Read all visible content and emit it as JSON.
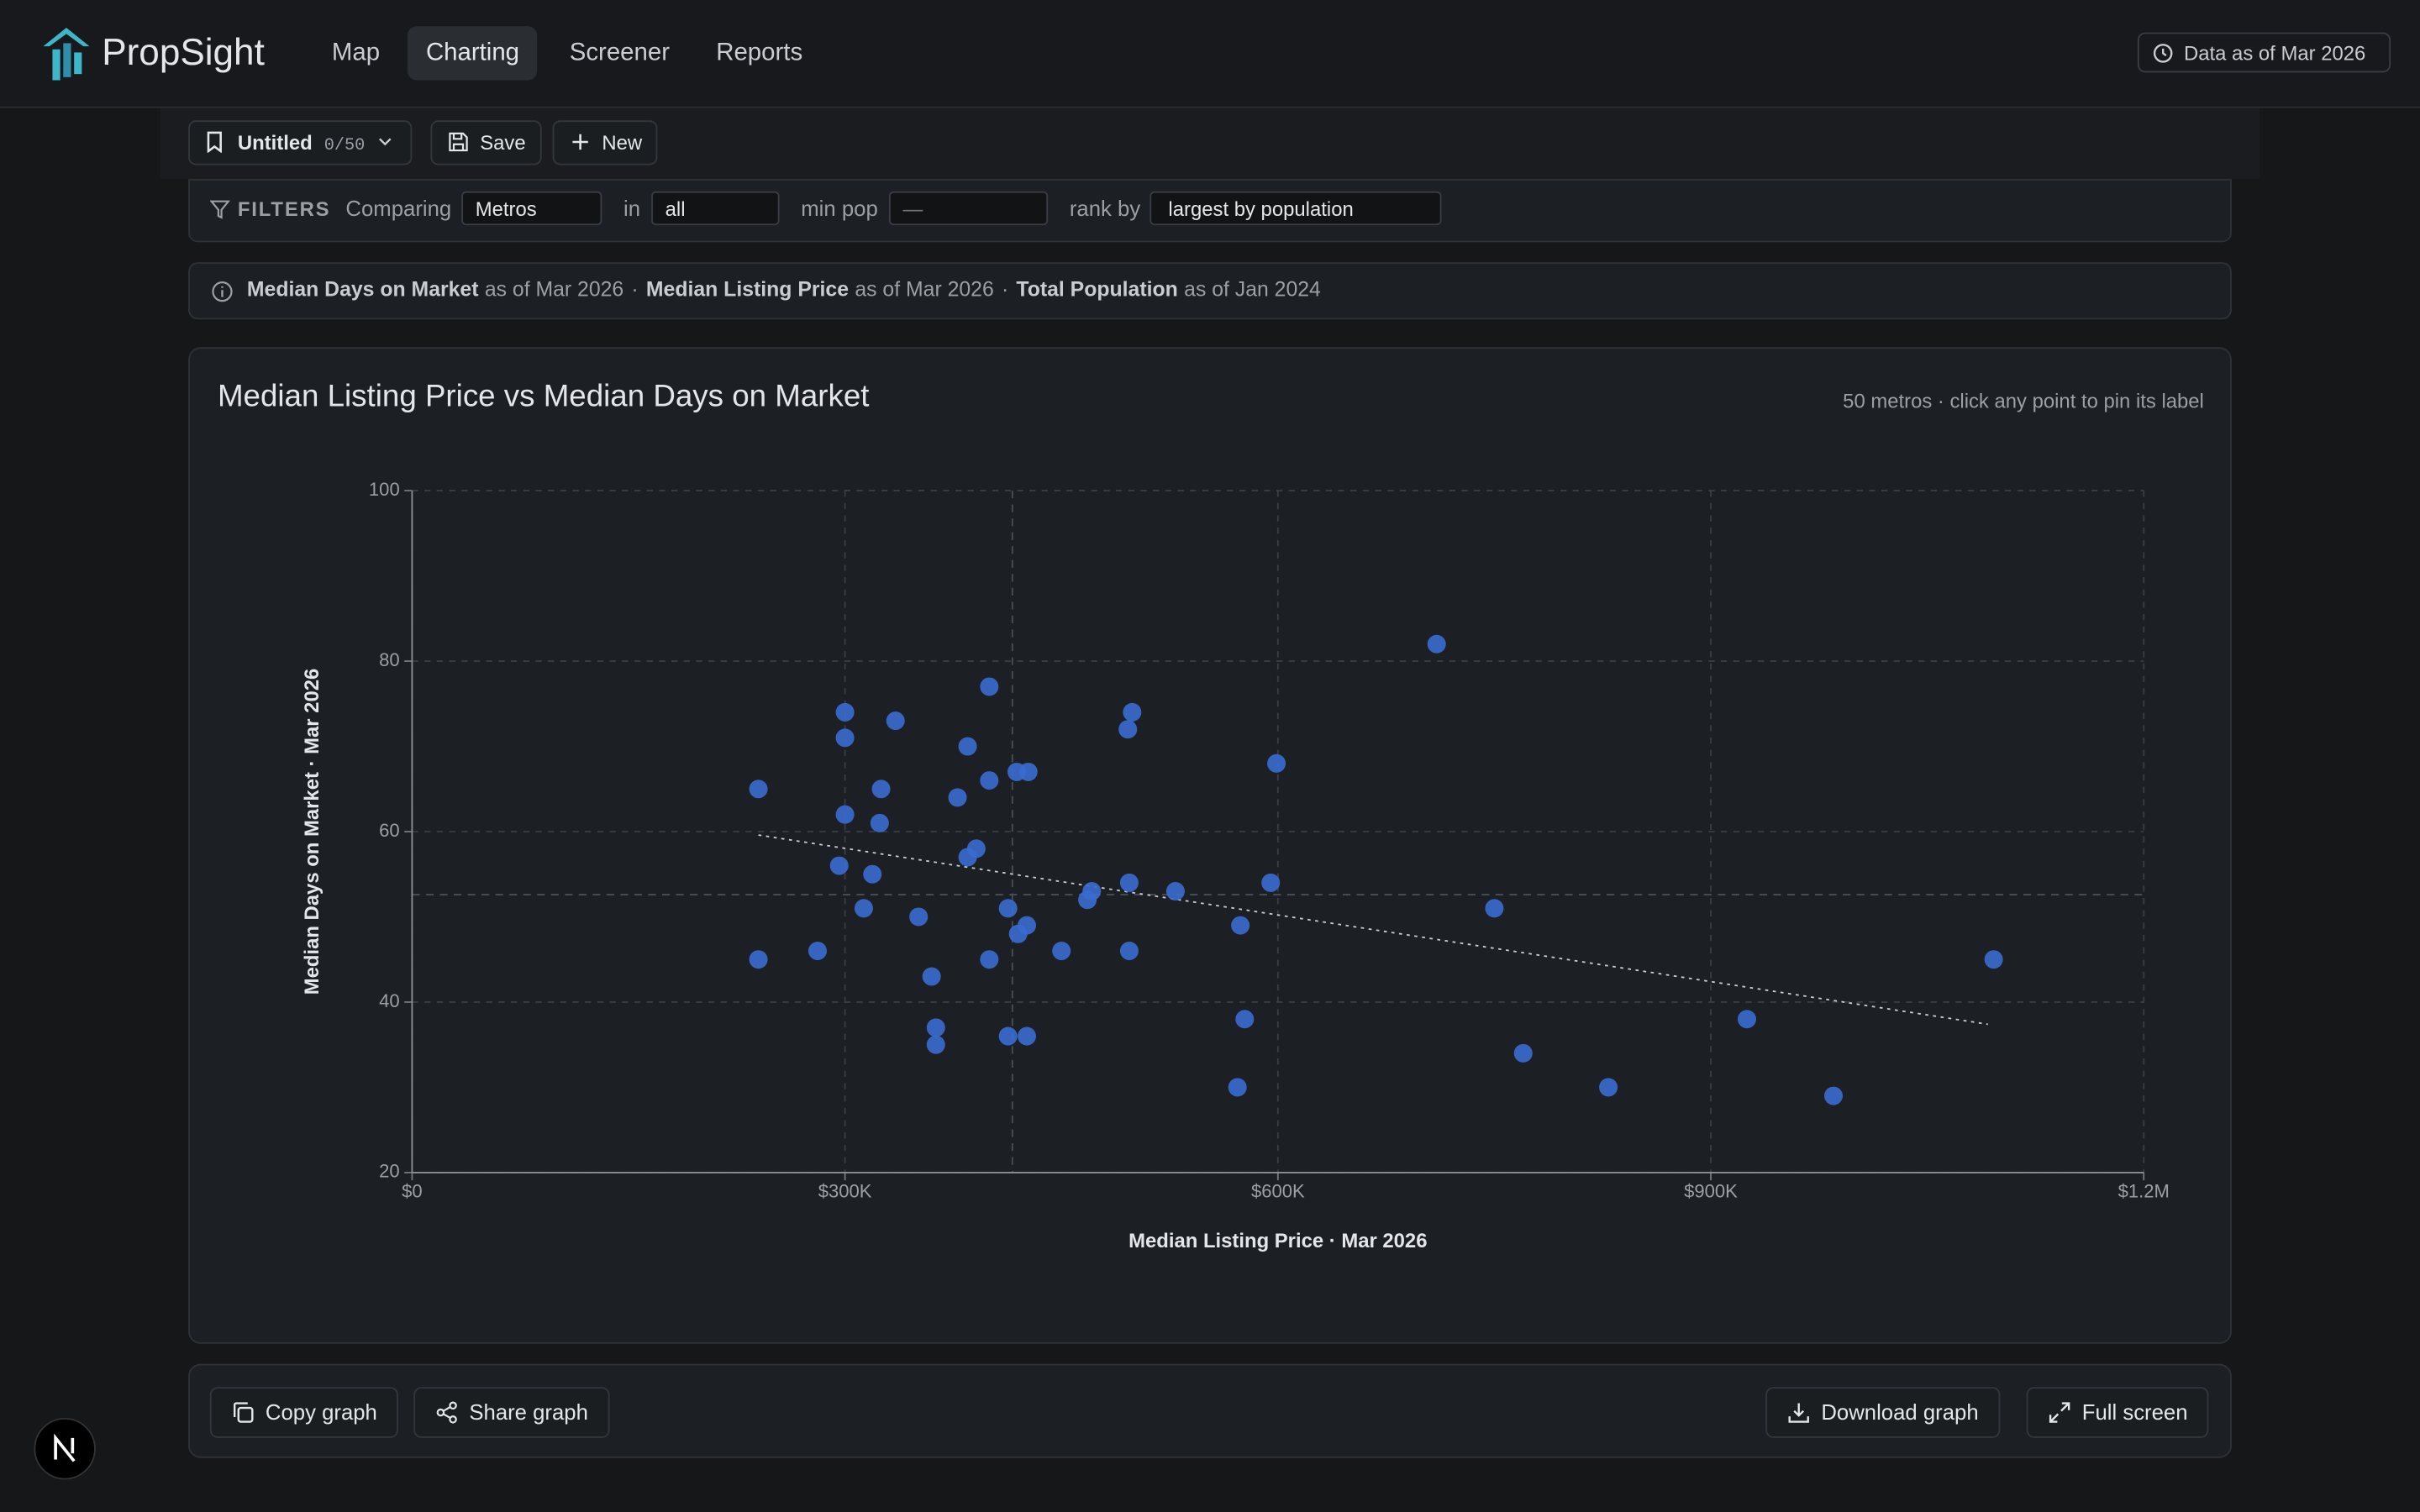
{
  "nav": {
    "brand": "PropSight",
    "links": [
      "Map",
      "Charting",
      "Screener",
      "Reports"
    ],
    "active": 1,
    "data_as_of": "Data as of Mar 2026"
  },
  "toolbar": {
    "name": "Untitled",
    "count": "0/50",
    "save": "Save",
    "new": "New"
  },
  "filters": {
    "label": "FILTERS",
    "comparing_label": "Comparing",
    "comparing": "Metros",
    "in_label": "in",
    "in": "all",
    "min_pop_label": "min pop",
    "min_pop_placeholder": "—",
    "rank_label": "rank by",
    "rank": "largest by population"
  },
  "info": {
    "separator": "·",
    "items": [
      {
        "metric": "Median Days on Market",
        "as_of": "as of Mar 2026"
      },
      {
        "metric": "Median Listing Price",
        "as_of": "as of Mar 2026"
      },
      {
        "metric": "Total Population",
        "as_of": "as of Jan 2024"
      }
    ]
  },
  "chart_data": {
    "type": "scatter",
    "title": "Median Listing Price vs Median Days on Market",
    "subtitle": "50 metros · click any point to pin its label",
    "x_label": "Median Listing Price · Mar 2026",
    "y_label": "Median Days on Market · Mar 2026",
    "color": "#3a6bd0",
    "x": [
      710000,
      240000,
      240000,
      300000,
      300000,
      300000,
      296000,
      281000,
      313000,
      319000,
      324000,
      325000,
      335000,
      351000,
      360000,
      363000,
      363000,
      378000,
      385000,
      385000,
      391000,
      400000,
      400000,
      400000,
      413000,
      413000,
      419000,
      427000,
      420000,
      426000,
      426000,
      450000,
      468000,
      471000,
      496000,
      499000,
      497000,
      497000,
      529000,
      574000,
      572000,
      577000,
      595000,
      599000,
      750000,
      770000,
      829000,
      925000,
      985000,
      1096000
    ],
    "values": [
      82,
      65,
      45,
      74,
      71,
      62,
      56,
      46,
      51,
      55,
      61,
      65,
      73,
      50,
      43,
      37,
      35,
      64,
      70,
      57,
      58,
      77,
      66,
      45,
      51,
      36,
      67,
      67,
      48,
      49,
      36,
      46,
      52,
      53,
      72,
      74,
      54,
      46,
      53,
      49,
      30,
      38,
      54,
      68,
      51,
      34,
      30,
      38,
      29,
      45
    ],
    "trend": {
      "x": [
        240000,
        1092000
      ],
      "y": [
        59.6,
        37.4
      ]
    },
    "reference_lines": {
      "x": 416000,
      "y": 52.6
    },
    "xlim": [
      0,
      1200000
    ],
    "xticks": [
      {
        "value": 0,
        "label": "$0"
      },
      {
        "value": 300000,
        "label": "$300K"
      },
      {
        "value": 600000,
        "label": "$600K"
      },
      {
        "value": 900000,
        "label": "$900K"
      },
      {
        "value": 1200000,
        "label": "$1.2M"
      }
    ],
    "ylim": [
      20,
      100
    ],
    "yticks": [
      20,
      40,
      60,
      80,
      100
    ],
    "grid": true
  },
  "actions": {
    "copy": "Copy graph",
    "share": "Share graph",
    "download": "Download graph",
    "fullscreen": "Full screen"
  }
}
